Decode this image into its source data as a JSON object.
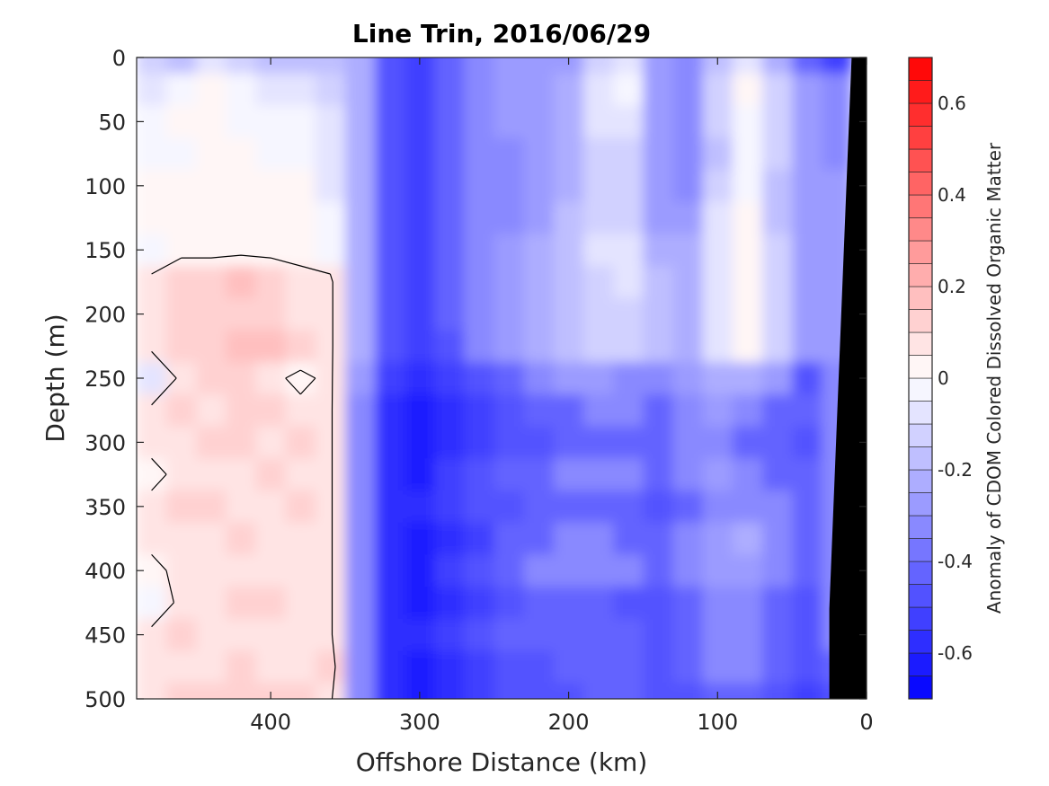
{
  "chart_data": {
    "type": "heatmap",
    "title": "Line Trin, 2016/06/29",
    "xlabel": "Offshore Distance (km)",
    "ylabel": "Depth (m)",
    "colorbar_label": "Anomaly of CDOM Colored Dissolved Organic Matter",
    "xlim": [
      490,
      0
    ],
    "ylim": [
      0,
      500
    ],
    "y_reversed": true,
    "x_reversed": true,
    "x_ticks": [
      400,
      300,
      200,
      100,
      0
    ],
    "y_ticks": [
      0,
      50,
      100,
      150,
      200,
      250,
      300,
      350,
      400,
      450,
      500
    ],
    "colorbar_range": [
      -0.7,
      0.7
    ],
    "colorbar_ticks": [
      0.6,
      0.4,
      0.2,
      0,
      -0.2,
      -0.4,
      -0.6
    ],
    "colorbar_levels": 28,
    "colormap": [
      "#0000ff",
      "#ffffff",
      "#ff0000"
    ],
    "zero_contour_color": "#000000",
    "bathymetry_color": "#000000",
    "grid": false,
    "x_samples": [
      480,
      460,
      440,
      420,
      400,
      380,
      360,
      340,
      320,
      300,
      280,
      260,
      240,
      220,
      200,
      180,
      160,
      140,
      120,
      100,
      80,
      60,
      40,
      20
    ],
    "y_samples": [
      0,
      25,
      50,
      75,
      100,
      125,
      150,
      175,
      200,
      225,
      250,
      275,
      300,
      325,
      350,
      375,
      400,
      425,
      450,
      475,
      500
    ],
    "values": [
      [
        -0.15,
        -0.2,
        -0.1,
        -0.15,
        -0.2,
        -0.2,
        -0.2,
        -0.25,
        -0.45,
        -0.5,
        -0.4,
        -0.35,
        -0.3,
        -0.3,
        -0.3,
        -0.15,
        -0.1,
        -0.3,
        -0.35,
        -0.2,
        -0.1,
        -0.25,
        -0.4,
        -0.5
      ],
      [
        -0.1,
        -0.05,
        0.0,
        -0.05,
        -0.1,
        -0.1,
        -0.15,
        -0.25,
        -0.45,
        -0.5,
        -0.4,
        -0.35,
        -0.3,
        -0.3,
        -0.25,
        -0.1,
        -0.05,
        -0.3,
        -0.35,
        -0.15,
        0.0,
        -0.15,
        -0.3,
        -0.35
      ],
      [
        -0.05,
        0.0,
        0.0,
        -0.05,
        -0.05,
        -0.05,
        -0.1,
        -0.25,
        -0.45,
        -0.5,
        -0.4,
        -0.35,
        -0.3,
        -0.3,
        -0.25,
        -0.1,
        -0.1,
        -0.3,
        -0.35,
        -0.15,
        -0.05,
        -0.15,
        -0.3,
        -0.35
      ],
      [
        -0.05,
        -0.05,
        0.0,
        0.0,
        -0.05,
        -0.05,
        -0.1,
        -0.25,
        -0.45,
        -0.5,
        -0.4,
        -0.35,
        -0.35,
        -0.3,
        -0.25,
        -0.15,
        -0.15,
        -0.3,
        -0.35,
        -0.2,
        -0.05,
        -0.15,
        -0.3,
        -0.35
      ],
      [
        0.0,
        0.0,
        0.0,
        0.0,
        0.0,
        0.0,
        -0.1,
        -0.25,
        -0.45,
        -0.5,
        -0.4,
        -0.35,
        -0.35,
        -0.3,
        -0.25,
        -0.15,
        -0.15,
        -0.3,
        -0.35,
        -0.15,
        -0.05,
        -0.2,
        -0.3,
        -0.3
      ],
      [
        0.0,
        0.0,
        0.0,
        0.0,
        0.0,
        0.0,
        -0.05,
        -0.25,
        -0.45,
        -0.5,
        -0.4,
        -0.35,
        -0.35,
        -0.3,
        -0.2,
        -0.15,
        -0.15,
        -0.3,
        -0.3,
        -0.1,
        0.0,
        -0.2,
        -0.3,
        -0.3
      ],
      [
        -0.05,
        0.0,
        0.0,
        0.0,
        0.0,
        0.0,
        -0.05,
        -0.25,
        -0.45,
        -0.5,
        -0.4,
        -0.35,
        -0.3,
        -0.25,
        -0.2,
        -0.1,
        -0.1,
        -0.25,
        -0.25,
        -0.1,
        0.0,
        -0.15,
        -0.3,
        -0.3
      ],
      [
        0.05,
        0.1,
        0.1,
        0.15,
        0.1,
        0.05,
        0.05,
        -0.25,
        -0.45,
        -0.5,
        -0.4,
        -0.35,
        -0.3,
        -0.25,
        -0.2,
        -0.15,
        -0.1,
        -0.2,
        -0.25,
        -0.1,
        0.0,
        -0.15,
        -0.3,
        -0.3
      ],
      [
        0.05,
        0.1,
        0.1,
        0.1,
        0.1,
        0.05,
        0.05,
        -0.25,
        -0.45,
        -0.5,
        -0.4,
        -0.35,
        -0.3,
        -0.25,
        -0.2,
        -0.15,
        -0.15,
        -0.2,
        -0.25,
        -0.1,
        0.0,
        -0.15,
        -0.3,
        -0.3
      ],
      [
        0.05,
        0.1,
        0.1,
        0.15,
        0.15,
        0.1,
        0.05,
        -0.25,
        -0.45,
        -0.5,
        -0.45,
        -0.35,
        -0.3,
        -0.25,
        -0.2,
        -0.15,
        -0.15,
        -0.2,
        -0.25,
        -0.1,
        0.0,
        -0.15,
        -0.3,
        -0.3
      ],
      [
        -0.1,
        0.05,
        0.1,
        0.1,
        0.05,
        0.0,
        0.05,
        -0.3,
        -0.5,
        -0.55,
        -0.5,
        -0.45,
        -0.4,
        -0.35,
        -0.3,
        -0.3,
        -0.35,
        -0.35,
        -0.3,
        -0.25,
        -0.25,
        -0.3,
        -0.45,
        -0.35
      ],
      [
        0.05,
        0.1,
        0.05,
        0.1,
        0.1,
        0.05,
        0.05,
        -0.35,
        -0.55,
        -0.6,
        -0.55,
        -0.5,
        -0.45,
        -0.4,
        -0.4,
        -0.35,
        -0.35,
        -0.4,
        -0.35,
        -0.3,
        -0.35,
        -0.4,
        -0.4,
        -0.35
      ],
      [
        0.05,
        0.05,
        0.1,
        0.1,
        0.05,
        0.1,
        0.05,
        -0.35,
        -0.55,
        -0.6,
        -0.55,
        -0.5,
        -0.45,
        -0.45,
        -0.4,
        -0.4,
        -0.4,
        -0.4,
        -0.35,
        -0.35,
        -0.4,
        -0.4,
        -0.45,
        -0.35
      ],
      [
        0.0,
        0.05,
        0.05,
        0.05,
        0.1,
        0.05,
        0.05,
        -0.35,
        -0.55,
        -0.6,
        -0.5,
        -0.45,
        -0.4,
        -0.4,
        -0.35,
        -0.35,
        -0.35,
        -0.4,
        -0.35,
        -0.3,
        -0.35,
        -0.4,
        -0.4,
        -0.35
      ],
      [
        0.05,
        0.1,
        0.1,
        0.05,
        0.05,
        0.1,
        0.05,
        -0.35,
        -0.55,
        -0.55,
        -0.5,
        -0.45,
        -0.45,
        -0.4,
        -0.4,
        -0.4,
        -0.4,
        -0.45,
        -0.4,
        -0.35,
        -0.35,
        -0.35,
        -0.4,
        -0.35
      ],
      [
        0.05,
        0.05,
        0.05,
        0.1,
        0.05,
        0.05,
        0.05,
        -0.35,
        -0.55,
        -0.6,
        -0.55,
        -0.5,
        -0.4,
        -0.4,
        -0.35,
        -0.35,
        -0.4,
        -0.4,
        -0.35,
        -0.3,
        -0.25,
        -0.35,
        -0.4,
        -0.35
      ],
      [
        0.0,
        0.05,
        0.05,
        0.05,
        0.05,
        0.05,
        0.05,
        -0.35,
        -0.55,
        -0.6,
        -0.5,
        -0.45,
        -0.4,
        -0.35,
        -0.35,
        -0.35,
        -0.35,
        -0.4,
        -0.35,
        -0.3,
        -0.3,
        -0.35,
        -0.4,
        -0.35
      ],
      [
        -0.05,
        0.05,
        0.05,
        0.1,
        0.1,
        0.05,
        0.05,
        -0.35,
        -0.55,
        -0.6,
        -0.55,
        -0.5,
        -0.45,
        -0.4,
        -0.4,
        -0.4,
        -0.45,
        -0.45,
        -0.4,
        -0.35,
        -0.35,
        -0.4,
        -0.45,
        -0.35
      ],
      [
        0.05,
        0.1,
        0.05,
        0.05,
        0.05,
        0.05,
        0.05,
        -0.35,
        -0.55,
        -0.55,
        -0.5,
        -0.45,
        -0.4,
        -0.4,
        -0.4,
        -0.4,
        -0.4,
        -0.45,
        -0.4,
        -0.35,
        -0.35,
        -0.4,
        -0.45,
        -0.35
      ],
      [
        0.05,
        0.05,
        0.05,
        0.1,
        0.05,
        0.05,
        0.1,
        -0.35,
        -0.55,
        -0.6,
        -0.55,
        -0.5,
        -0.45,
        -0.45,
        -0.4,
        -0.4,
        -0.4,
        -0.45,
        -0.4,
        -0.35,
        -0.35,
        -0.4,
        -0.45,
        -0.4
      ],
      [
        0.05,
        0.1,
        0.1,
        0.1,
        0.1,
        0.1,
        0.05,
        -0.35,
        -0.55,
        -0.6,
        -0.55,
        -0.5,
        -0.45,
        -0.45,
        -0.45,
        -0.4,
        -0.4,
        -0.45,
        -0.45,
        -0.4,
        -0.4,
        -0.45,
        -0.5,
        -0.45
      ]
    ],
    "bathymetry": {
      "x": [
        0,
        10,
        25,
        25,
        0
      ],
      "y": [
        0,
        0,
        430,
        500,
        500
      ]
    }
  }
}
